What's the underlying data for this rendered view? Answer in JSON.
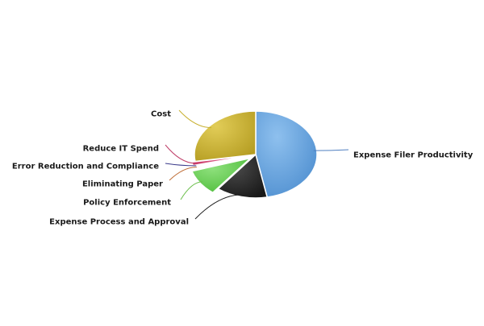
{
  "chart_data": {
    "type": "pie",
    "title": "",
    "slices": [
      {
        "label": "Expense Filer Productivity",
        "value": 47.0,
        "color": "#4f8fd0",
        "light": "#8ec0ee",
        "leader": "#4f7fc0"
      },
      {
        "label": "Expense Process and Approval",
        "value": 13.5,
        "color": "#181818",
        "light": "#4a4a4a",
        "leader": "#202020"
      },
      {
        "label": "Policy Enforcement",
        "value": 9.7,
        "color": "#4fbd3c",
        "light": "#8ee07c",
        "leader": "#6cbf4c"
      },
      {
        "label": "Eliminating Paper",
        "value": 0.5,
        "color": "#c8702a",
        "light": "#e6a060",
        "leader": "#c0703a"
      },
      {
        "label": "Error Reduction and Compliance",
        "value": 0.5,
        "color": "#3a2f7a",
        "light": "#6a5fb0",
        "leader": "#3a3a8a"
      },
      {
        "label": "Reduce IT Spend",
        "value": 1.3,
        "color": "#c0285a",
        "light": "#e06a90",
        "leader": "#c0406a"
      },
      {
        "label": "Cost",
        "value": 27.5,
        "color": "#b59d22",
        "light": "#e2cd58",
        "leader": "#c8b030"
      }
    ],
    "legend": "none",
    "labels": "outside-with-leader-lines"
  }
}
